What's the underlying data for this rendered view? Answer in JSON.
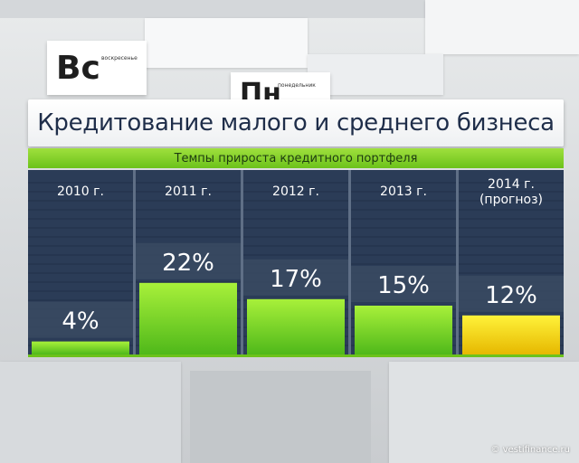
{
  "background": {
    "day_cards": [
      {
        "abbr": "Вс",
        "full": "воскресенье"
      },
      {
        "abbr": "Пн",
        "full": "понедельник"
      }
    ]
  },
  "chart_data": {
    "type": "bar",
    "title": "Кредитование малого и среднего бизнеса",
    "subtitle": "Темпы прироста кредитного портфеля",
    "categories": [
      [
        "2010 г."
      ],
      [
        "2011 г."
      ],
      [
        "2012 г."
      ],
      [
        "2013 г."
      ],
      [
        "2014 г.",
        "(прогноз)"
      ]
    ],
    "values": [
      4,
      22,
      17,
      15,
      12
    ],
    "value_labels": [
      "4%",
      "22%",
      "17%",
      "15%",
      "12%"
    ],
    "unit": "%",
    "ylim": [
      0,
      40
    ],
    "colors": [
      "#7ed321",
      "#7ed321",
      "#7ed321",
      "#7ed321",
      "#f2d600"
    ],
    "background_color": "#25354f",
    "accent_color": "#6cc21b"
  },
  "credit": "© vestifinance.ru"
}
